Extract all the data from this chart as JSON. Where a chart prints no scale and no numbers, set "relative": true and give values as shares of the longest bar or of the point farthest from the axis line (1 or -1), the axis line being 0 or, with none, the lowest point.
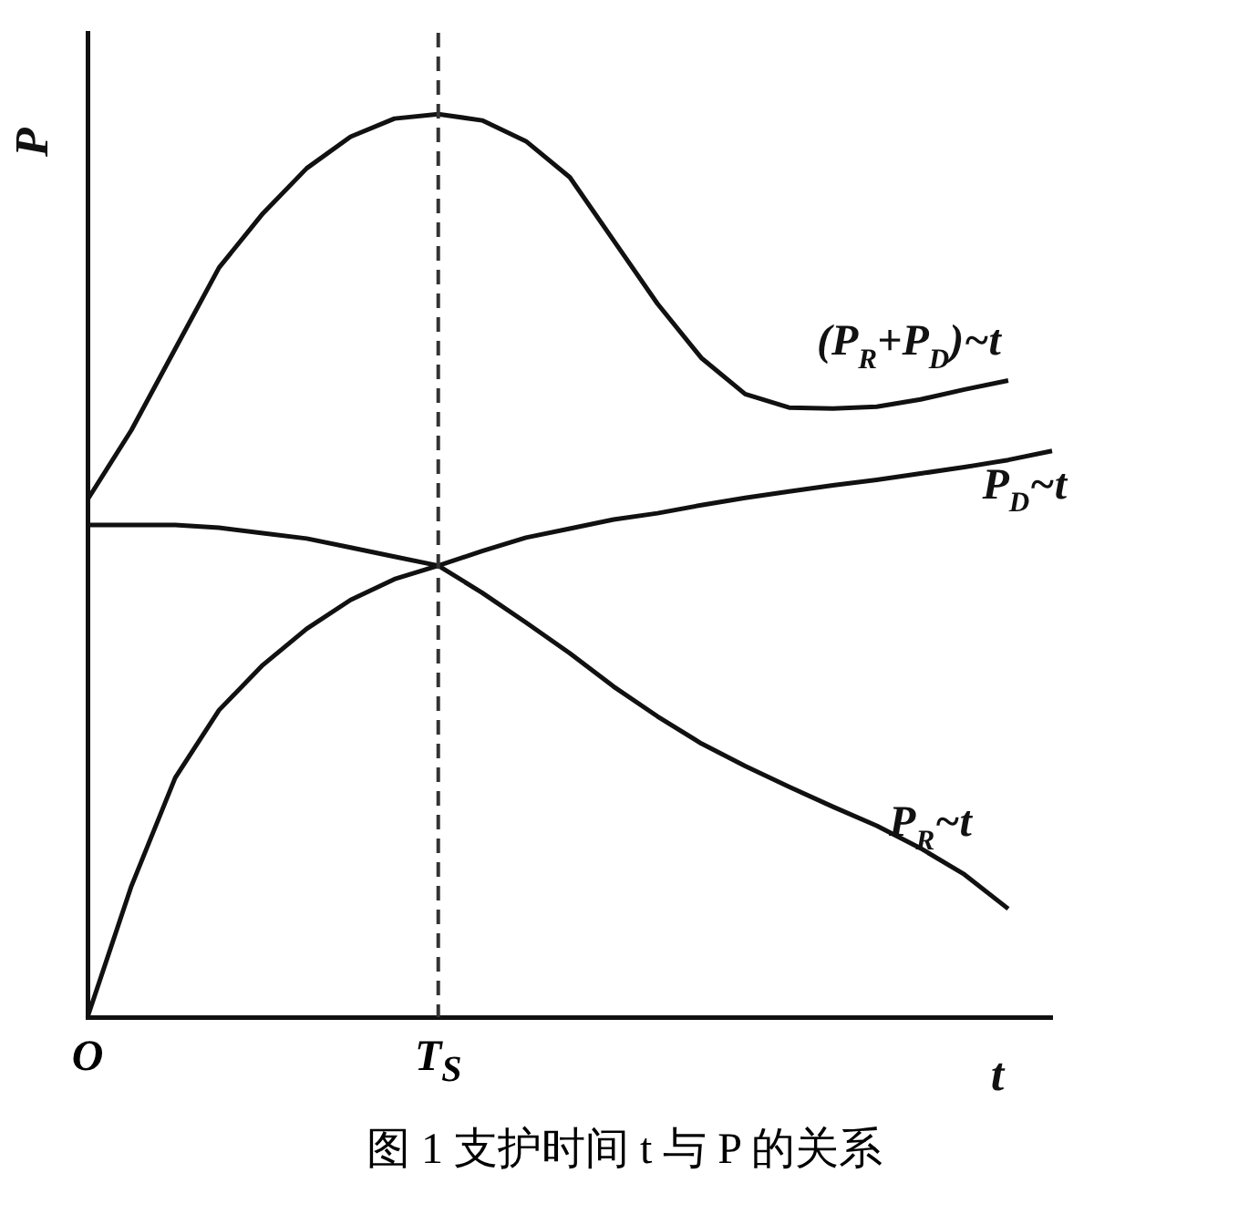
{
  "chart_data": {
    "type": "line",
    "relative": true,
    "xlabel": "t",
    "ylabel": "P",
    "categories": [
      "O",
      null,
      null,
      null,
      null,
      null,
      null,
      null,
      "T$_{S}$",
      null,
      null,
      null,
      null,
      null,
      null,
      null,
      null,
      null,
      null,
      null,
      null,
      null,
      null
    ],
    "tick_labels": "x",
    "grid": false,
    "legend": false,
    "marker": "none",
    "line_style": "solid",
    "annotations": [
      "图 1 支护时间 t 与 P 的关系"
    ],
    "ref_lines": [
      {
        "axis": "x",
        "value": "T$_{S}$",
        "label": null,
        "color": "#333333",
        "line_style": "dashed"
      }
    ],
    "series": [
      {
        "name": "(P$_{R}$+P$_{D}$)~t",
        "color": "#111111",
        "values": [
          0.573,
          0.65,
          0.74,
          0.83,
          0.89,
          0.94,
          0.975,
          0.995,
          1,
          0.993,
          0.97,
          0.93,
          0.86,
          0.79,
          0.73,
          0.69,
          0.675,
          0.674,
          0.676,
          0.684,
          0.695,
          0.705,
          null
        ]
      },
      {
        "name": "P$_{D}$~t",
        "color": "#111111",
        "values": [
          0,
          0.145,
          0.265,
          0.34,
          0.39,
          0.43,
          0.462,
          0.485,
          0.5,
          0.516,
          0.531,
          0.541,
          0.551,
          0.558,
          0.567,
          0.575,
          0.582,
          0.589,
          0.595,
          0.602,
          0.609,
          0.617,
          0.627
        ]
      },
      {
        "name": "P$_{R}$~t",
        "color": "#111111",
        "values": [
          0.545,
          0.545,
          0.545,
          0.542,
          0.536,
          0.53,
          0.52,
          0.51,
          0.5,
          0.47,
          0.437,
          0.403,
          0.366,
          0.333,
          0.303,
          0.278,
          0.255,
          0.233,
          0.212,
          0.187,
          0.158,
          0.12,
          null
        ]
      }
    ]
  }
}
